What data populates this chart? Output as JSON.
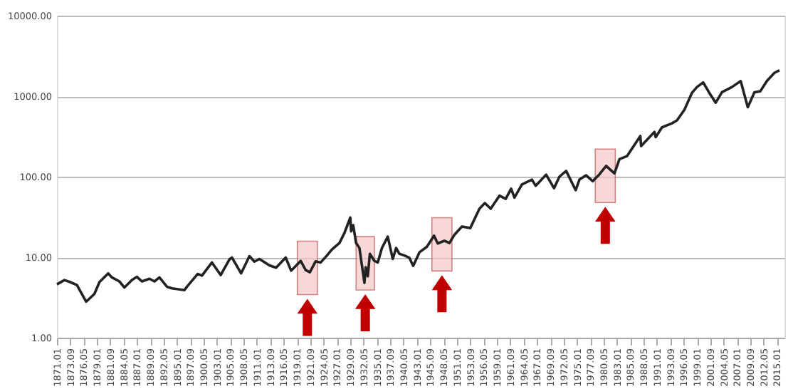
{
  "chart_data": {
    "type": "line",
    "log": "y",
    "grid": "y",
    "x": [
      "1871-01",
      "1872-07",
      "1873-09",
      "1875-01",
      "1876-11",
      "1878-07",
      "1879-07",
      "1881-04",
      "1882-01",
      "1883-07",
      "1884-07",
      "1886-01",
      "1887-01",
      "1888-01",
      "1889-07",
      "1890-07",
      "1891-07",
      "1893-01",
      "1894-01",
      "1896-07",
      "1897-01",
      "1899-03",
      "1900-01",
      "1902-01",
      "1903-10",
      "1905-07",
      "1906-01",
      "1907-11",
      "1909-07",
      "1910-07",
      "1911-07",
      "1913-07",
      "1914-11",
      "1916-10",
      "1917-11",
      "1919-10",
      "1920-10",
      "1921-08",
      "1922-10",
      "1923-10",
      "1925-01",
      "1926-01",
      "1927-07",
      "1928-07",
      "1929-09",
      "1929-11",
      "1930-04",
      "1930-11",
      "1931-07",
      "1932-07",
      "1932-10",
      "1933-03",
      "1933-08",
      "1934-07",
      "1935-03",
      "1936-01",
      "1937-03",
      "1938-03",
      "1938-11",
      "1939-07",
      "1940-07",
      "1941-07",
      "1942-04",
      "1943-07",
      "1945-01",
      "1946-06",
      "1947-03",
      "1948-07",
      "1949-07",
      "1950-07",
      "1952-01",
      "1953-09",
      "1955-07",
      "1956-08",
      "1957-10",
      "1959-07",
      "1960-10",
      "1961-11",
      "1962-07",
      "1964-01",
      "1966-01",
      "1966-10",
      "1968-11",
      "1970-06",
      "1971-07",
      "1972-11",
      "1974-10",
      "1975-07",
      "1976-11",
      "1978-03",
      "1979-07",
      "1980-11",
      "1982-07",
      "1983-07",
      "1985-01",
      "1987-09",
      "1987-11",
      "1990-07",
      "1990-10",
      "1992-01",
      "1994-01",
      "1995-01",
      "1996-07",
      "1998-01",
      "1999-01",
      "2000-04",
      "2001-09",
      "2002-10",
      "2004-01",
      "2006-01",
      "2007-10",
      "2009-03",
      "2010-07",
      "2011-09",
      "2013-01",
      "2014-07",
      "2015-07"
    ],
    "series": [
      {
        "color": "#222222",
        "values": [
          4.6,
          5.2,
          4.9,
          4.5,
          2.8,
          3.5,
          4.9,
          6.3,
          5.6,
          5.0,
          4.2,
          5.2,
          5.7,
          5.0,
          5.4,
          5.0,
          5.6,
          4.3,
          4.1,
          3.9,
          4.3,
          6.2,
          5.9,
          8.6,
          6.0,
          9.4,
          9.9,
          6.3,
          10.3,
          8.8,
          9.5,
          7.9,
          7.4,
          9.9,
          6.8,
          9.0,
          6.9,
          6.5,
          8.9,
          8.6,
          10.5,
          12.5,
          15,
          20,
          31,
          21,
          25,
          15,
          13,
          4.8,
          7.5,
          5.8,
          11,
          9.0,
          8.6,
          13,
          18,
          9.5,
          13,
          11,
          10.5,
          9.8,
          7.8,
          11.5,
          13.5,
          18.5,
          14.8,
          16,
          15,
          19,
          24,
          23,
          40,
          47,
          40,
          58,
          53,
          71,
          55,
          80,
          92,
          77,
          106,
          72,
          100,
          118,
          68,
          92,
          104,
          88,
          107,
          136,
          110,
          165,
          180,
          320,
          240,
          360,
          310,
          410,
          460,
          500,
          680,
          1100,
          1300,
          1480,
          1050,
          830,
          1120,
          1300,
          1540,
          730,
          1120,
          1150,
          1550,
          1950,
          2100
        ]
      }
    ],
    "xlim": [
      "1871-01",
      "2016-07"
    ],
    "xticks": [
      {
        "value": "1871-01",
        "label": "1871.01"
      },
      {
        "value": "1873-09",
        "label": "1873.09"
      },
      {
        "value": "1876-05",
        "label": "1876.05"
      },
      {
        "value": "1879-01",
        "label": "1879.01"
      },
      {
        "value": "1881-09",
        "label": "1881.09"
      },
      {
        "value": "1884-05",
        "label": "1884.05"
      },
      {
        "value": "1887-01",
        "label": "1887.01"
      },
      {
        "value": "1889-09",
        "label": "1889.09"
      },
      {
        "value": "1892-05",
        "label": "1892.05"
      },
      {
        "value": "1895-01",
        "label": "1895.01"
      },
      {
        "value": "1897-09",
        "label": "1897.09"
      },
      {
        "value": "1900-05",
        "label": "1900.05"
      },
      {
        "value": "1903-01",
        "label": "1903.01"
      },
      {
        "value": "1905-09",
        "label": "1905.09"
      },
      {
        "value": "1908-05",
        "label": "1908.05"
      },
      {
        "value": "1911-01",
        "label": "1911.01"
      },
      {
        "value": "1913-09",
        "label": "1913.09"
      },
      {
        "value": "1916-05",
        "label": "1916.05"
      },
      {
        "value": "1919-01",
        "label": "1919.01"
      },
      {
        "value": "1921-09",
        "label": "1921.09"
      },
      {
        "value": "1924-05",
        "label": "1924.05"
      },
      {
        "value": "1927-01",
        "label": "1927.01"
      },
      {
        "value": "1929-09",
        "label": "1929.09"
      },
      {
        "value": "1932-05",
        "label": "1932.05"
      },
      {
        "value": "1935-01",
        "label": "1935.01"
      },
      {
        "value": "1937-09",
        "label": "1937.09"
      },
      {
        "value": "1940-05",
        "label": "1940.05"
      },
      {
        "value": "1943-01",
        "label": "1943.01"
      },
      {
        "value": "1945-09",
        "label": "1945.09"
      },
      {
        "value": "1948-05",
        "label": "1948.05"
      },
      {
        "value": "1951-01",
        "label": "1951.01"
      },
      {
        "value": "1953-09",
        "label": "1953.09"
      },
      {
        "value": "1956-05",
        "label": "1956.05"
      },
      {
        "value": "1959-01",
        "label": "1959.01"
      },
      {
        "value": "1961-09",
        "label": "1961.09"
      },
      {
        "value": "1964-05",
        "label": "1964.05"
      },
      {
        "value": "1967-01",
        "label": "1967.01"
      },
      {
        "value": "1969-09",
        "label": "1969.09"
      },
      {
        "value": "1972-05",
        "label": "1972.05"
      },
      {
        "value": "1975-01",
        "label": "1975.01"
      },
      {
        "value": "1977-09",
        "label": "1977.09"
      },
      {
        "value": "1980-05",
        "label": "1980.05"
      },
      {
        "value": "1983-01",
        "label": "1983.01"
      },
      {
        "value": "1985-09",
        "label": "1985.09"
      },
      {
        "value": "1988-05",
        "label": "1988.05"
      },
      {
        "value": "1991-01",
        "label": "1991.01"
      },
      {
        "value": "1993-09",
        "label": "1993.09"
      },
      {
        "value": "1996-05",
        "label": "1996.05"
      },
      {
        "value": "1999-01",
        "label": "1999.01"
      },
      {
        "value": "2001-09",
        "label": "2001.09"
      },
      {
        "value": "2004-05",
        "label": "2004.05"
      },
      {
        "value": "2007-01",
        "label": "2007.01"
      },
      {
        "value": "2009-09",
        "label": "2009.09"
      },
      {
        "value": "2012-05",
        "label": "2012.05"
      },
      {
        "value": "2015-01",
        "label": "2015.01"
      }
    ],
    "ylim": [
      1,
      10000
    ],
    "yticks": [
      {
        "value": 1,
        "label": "1.00"
      },
      {
        "value": 10,
        "label": "10.00"
      },
      {
        "value": 100,
        "label": "100.00"
      },
      {
        "value": 1000,
        "label": "1000.00"
      },
      {
        "value": 10000,
        "label": "10000.00"
      }
    ],
    "bands": [
      {
        "axis": "x",
        "from": "1919-02",
        "to": "1923-02",
        "color": "#f4c7c7"
      },
      {
        "axis": "x",
        "from": "1930-11",
        "to": "1934-07",
        "color": "#f4c7c7"
      },
      {
        "axis": "x",
        "from": "1946-01",
        "to": "1950-01",
        "color": "#f4c7c7"
      },
      {
        "axis": "x",
        "from": "1978-09",
        "to": "1982-09",
        "color": "#f4c7c7"
      }
    ]
  }
}
